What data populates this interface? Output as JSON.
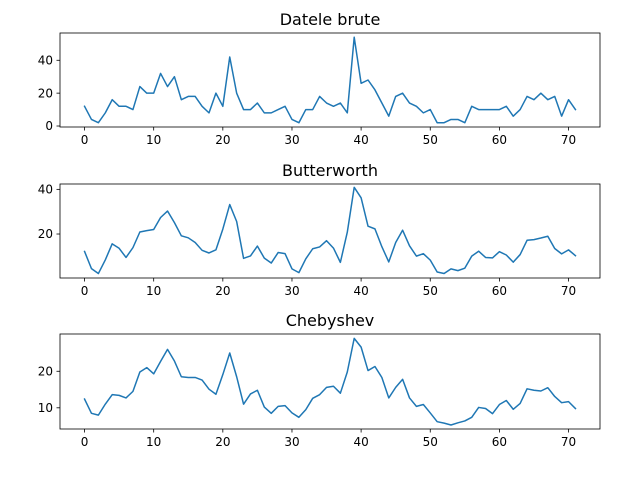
{
  "chart_data": [
    {
      "type": "line",
      "title": "Datele brute",
      "xlabel": "",
      "ylabel": "",
      "xlim": [
        -3.55,
        74.55
      ],
      "ylim": [
        -0.6,
        56.6
      ],
      "xticks": [
        0,
        10,
        20,
        30,
        40,
        50,
        60,
        70
      ],
      "yticks": [
        0,
        20,
        40
      ],
      "series": [
        {
          "color": "#1f77b4",
          "x": [
            0,
            1,
            2,
            3,
            4,
            5,
            6,
            7,
            8,
            9,
            10,
            11,
            12,
            13,
            14,
            15,
            16,
            17,
            18,
            19,
            20,
            21,
            22,
            23,
            24,
            25,
            26,
            27,
            28,
            29,
            30,
            31,
            32,
            33,
            34,
            35,
            36,
            37,
            38,
            39,
            40,
            41,
            42,
            43,
            44,
            45,
            46,
            47,
            48,
            49,
            50,
            51,
            52,
            53,
            54,
            55,
            56,
            57,
            58,
            59,
            60,
            61,
            62,
            63,
            64,
            65,
            66,
            67,
            68,
            69,
            70,
            71
          ],
          "y": [
            12,
            4,
            2,
            8,
            16,
            12,
            12,
            10,
            24,
            20,
            20,
            32,
            24,
            30,
            16,
            18,
            18,
            12,
            8,
            20,
            12,
            42,
            20,
            10,
            10,
            14,
            8,
            8,
            10,
            12,
            4,
            2,
            10,
            10,
            18,
            14,
            12,
            14,
            8,
            54,
            26,
            28,
            22,
            14,
            6,
            18,
            20,
            14,
            12,
            8,
            10,
            2,
            2,
            4,
            4,
            2,
            12,
            10,
            10,
            10,
            10,
            12,
            6,
            10,
            18,
            16,
            20,
            16,
            18,
            6,
            16,
            10
          ]
        }
      ]
    },
    {
      "type": "line",
      "title": "Butterworth",
      "xlabel": "",
      "ylabel": "",
      "xlim": [
        -3.55,
        74.55
      ],
      "ylim": [
        0.3,
        42.4
      ],
      "xticks": [
        0,
        10,
        20,
        30,
        40,
        50,
        60,
        70
      ],
      "yticks": [
        20,
        40
      ],
      "series": [
        {
          "color": "#1f77b4",
          "x": [
            0,
            1,
            2,
            3,
            4,
            5,
            6,
            7,
            8,
            9,
            10,
            11,
            12,
            13,
            14,
            15,
            16,
            17,
            18,
            19,
            20,
            21,
            22,
            23,
            24,
            25,
            26,
            27,
            28,
            29,
            30,
            31,
            32,
            33,
            34,
            35,
            36,
            37,
            38,
            39,
            40,
            41,
            42,
            43,
            44,
            45,
            46,
            47,
            48,
            49,
            50,
            51,
            52,
            53,
            54,
            55,
            56,
            57,
            58,
            59,
            60,
            61,
            62,
            63,
            64,
            65,
            66,
            67,
            68,
            69,
            70,
            71
          ],
          "y": [
            12.2,
            4.5,
            2.3,
            8.4,
            15.6,
            13.6,
            9.5,
            13.9,
            20.9,
            21.5,
            22,
            27.4,
            30.3,
            25.1,
            19.2,
            18.3,
            16.2,
            12.7,
            11.5,
            12.9,
            22.2,
            33.2,
            25.6,
            9.1,
            10.2,
            14.6,
            9.2,
            7,
            11.7,
            11.2,
            4.4,
            2.7,
            8.9,
            13.4,
            14.2,
            17,
            13.7,
            7.3,
            20.8,
            40.9,
            36.2,
            23.5,
            22.3,
            14.3,
            7.5,
            16.2,
            21.7,
            14.7,
            10.1,
            11.2,
            8.3,
            3,
            2.3,
            4.4,
            3.6,
            4.7,
            10.1,
            12.3,
            9.5,
            9.3,
            12.1,
            10.6,
            7.4,
            10.8,
            17.2,
            17.5,
            18.2,
            19,
            13.5,
            11.1,
            12.9,
            10.3
          ]
        }
      ]
    },
    {
      "type": "line",
      "title": "Chebyshev",
      "xlabel": "",
      "ylabel": "",
      "xlim": [
        -3.55,
        74.55
      ],
      "ylim": [
        4.2,
        30.2
      ],
      "xticks": [
        0,
        10,
        20,
        30,
        40,
        50,
        60,
        70
      ],
      "yticks": [
        10,
        20
      ],
      "series": [
        {
          "color": "#1f77b4",
          "x": [
            0,
            1,
            2,
            3,
            4,
            5,
            6,
            7,
            8,
            9,
            10,
            11,
            12,
            13,
            14,
            15,
            16,
            17,
            18,
            19,
            20,
            21,
            22,
            23,
            24,
            25,
            26,
            27,
            28,
            29,
            30,
            31,
            32,
            33,
            34,
            35,
            36,
            37,
            38,
            39,
            40,
            41,
            42,
            43,
            44,
            45,
            46,
            47,
            48,
            49,
            50,
            51,
            52,
            53,
            54,
            55,
            56,
            57,
            58,
            59,
            60,
            61,
            62,
            63,
            64,
            65,
            66,
            67,
            68,
            69,
            70,
            71
          ],
          "y": [
            12.4,
            8.5,
            8,
            11,
            13.6,
            13.4,
            12.7,
            14.5,
            19.8,
            21,
            19.3,
            22.7,
            26,
            22.8,
            18.5,
            18.3,
            18.3,
            17.6,
            15.1,
            13.7,
            19.1,
            25,
            18.5,
            11,
            13.8,
            14.8,
            10.2,
            8.5,
            10.4,
            10.6,
            8.6,
            7.4,
            9.5,
            12.6,
            13.6,
            15.6,
            15.9,
            14,
            19.8,
            29,
            26.6,
            20.2,
            21.3,
            18.3,
            12.7,
            15.6,
            17.8,
            12.7,
            10.4,
            10.9,
            8.6,
            6.2,
            5.8,
            5.3,
            5.9,
            6.4,
            7.4,
            10.1,
            9.8,
            8.4,
            10.9,
            12,
            9.6,
            11.2,
            15.2,
            14.8,
            14.6,
            15.5,
            13.1,
            11.4,
            11.7,
            9.8
          ]
        }
      ]
    }
  ]
}
